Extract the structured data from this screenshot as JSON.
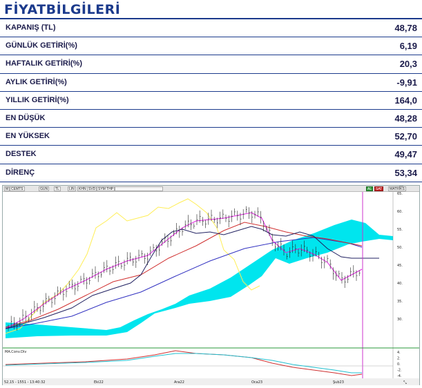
{
  "title": "FİYATBİLGİLERİ",
  "rows": [
    {
      "label": "KAPANIŞ  (TL)",
      "value": "48,78"
    },
    {
      "label": "GÜNLÜK GETİRİ(%)",
      "value": "6,19"
    },
    {
      "label": "HAFTALIK GETİRİ(%)",
      "value": "20,3"
    },
    {
      "label": "AYLIK GETİRİ(%)",
      "value": "-9,91"
    },
    {
      "label": "YILLIK  GETİRİ(%)",
      "value": "164,0"
    },
    {
      "label": "EN DÜŞÜK",
      "value": "48,28"
    },
    {
      "label": "EN YÜKSEK",
      "value": "52,70"
    },
    {
      "label": "DESTEK",
      "value": "49,47"
    },
    {
      "label": "DİRENÇ",
      "value": "53,34"
    }
  ],
  "chart": {
    "toolbar": {
      "symbol": "M",
      "code": "CEMTS",
      "buttons": [
        "GUN",
        "TL",
        "LIN",
        "KHN",
        "SVD",
        "SYM THP"
      ],
      "al": "AL",
      "sat": "SAT",
      "matriks": "MATRİKS"
    },
    "indicator_label": "MA.Conv.Div",
    "status_text": "52,15 - 1551 - 13:40:32",
    "price_axis": [
      "65.",
      "60.",
      "55.",
      "50.",
      "45.",
      "40.",
      "35.",
      "30."
    ],
    "macd_axis": [
      "4.",
      "2.",
      "0.",
      "-2.",
      "-4."
    ],
    "date_labels": [
      "Eki22",
      "Ara22",
      "Oca23",
      "Şub23"
    ],
    "colors": {
      "cloud": "#00e5ee",
      "candles": "#222222",
      "ma_fast": "#e020e0",
      "ma_slow": "#d03030",
      "ma_long": "#3030c0",
      "yellow_line": "#ffee55",
      "macd": "#d03030",
      "signal": "#20c0d0"
    }
  }
}
